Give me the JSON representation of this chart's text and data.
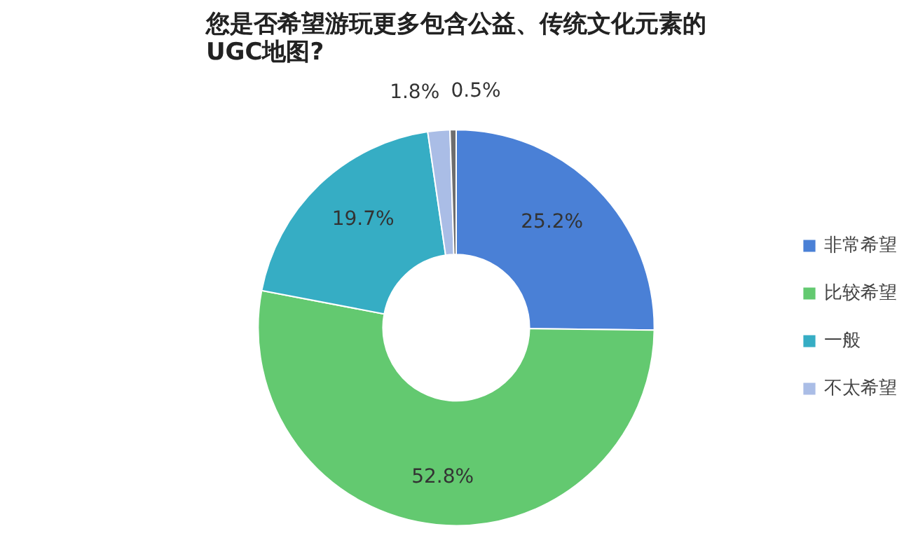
{
  "chart_data": {
    "type": "donut",
    "title": "您是否希望游玩更多包含公益、传统文化元素的\nUGC地图?",
    "categories": [
      "非常希望",
      "比较希望",
      "一般",
      "不太希望",
      null
    ],
    "values": [
      25.2,
      52.8,
      19.7,
      1.8,
      0.5
    ],
    "colors": [
      "#4a80d6",
      "#63c970",
      "#36adc4",
      "#aabde6",
      "#6e6e6e"
    ],
    "value_labels": [
      "25.2%",
      "52.8%",
      "19.7%",
      "1.8%",
      "0.5%"
    ],
    "legend": "right"
  }
}
